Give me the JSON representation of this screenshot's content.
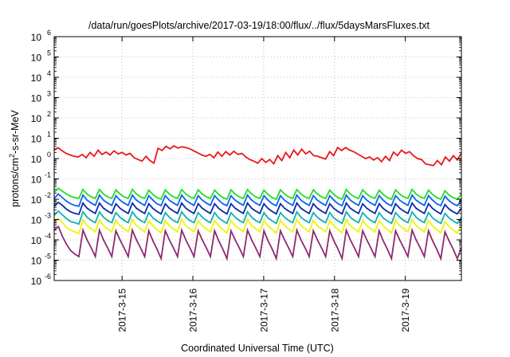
{
  "chart_data": {
    "type": "line",
    "title": "/data/run/goesPlots/archive/2017-03-19/18:00/flux/../flux/5daysMarsFluxes.txt",
    "xlabel": "Coordinated Universal Time (UTC)",
    "ylabel": {
      "base": "protons/cm",
      "sup": "2",
      "rest": "-s-sr-MeV"
    },
    "y_scale": "log",
    "ylim": [
      1e-06,
      1000000.0
    ],
    "y_ticks": [
      {
        "exp": "-6"
      },
      {
        "exp": "-5"
      },
      {
        "exp": "-4"
      },
      {
        "exp": "-3"
      },
      {
        "exp": "-2"
      },
      {
        "exp": "-1"
      },
      {
        "exp": "0"
      },
      {
        "exp": "1"
      },
      {
        "exp": "2"
      },
      {
        "exp": "3"
      },
      {
        "exp": "4"
      },
      {
        "exp": "5"
      },
      {
        "exp": "6"
      }
    ],
    "y_tick_base": "10",
    "xlim": [
      "2017-03-14 01:00",
      "2017-03-19 19:00"
    ],
    "x_ticks": [
      "2017-3-15",
      "2017-3-16",
      "2017-3-17",
      "2017-3-18",
      "2017-3-19"
    ],
    "x_tick_dates": [
      "2017-03-15",
      "2017-03-16",
      "2017-03-17",
      "2017-03-18",
      "2017-03-19"
    ],
    "grid": true,
    "series": [
      {
        "color": "#e8191d",
        "values": [
          2.6,
          3.4,
          2.4,
          1.8,
          1.5,
          1.3,
          1.2,
          1.6,
          1.1,
          2.0,
          1.3,
          2.6,
          1.6,
          2.1,
          1.5,
          2.4,
          1.7,
          2.0,
          1.5,
          1.8,
          1.1,
          0.9,
          0.75,
          1.3,
          0.8,
          0.6,
          3.2,
          2.5,
          4.0,
          3.0,
          4.2,
          3.3,
          3.8,
          3.5,
          3.0,
          2.4,
          1.9,
          1.5,
          1.3,
          1.6,
          1.1,
          2.1,
          1.3,
          2.2,
          1.5,
          2.3,
          1.6,
          1.8,
          1.2,
          0.9,
          0.75,
          0.6,
          1.0,
          0.65,
          0.9,
          0.55,
          1.4,
          0.8,
          2.0,
          1.1,
          2.6,
          1.5,
          2.9,
          1.7,
          2.3,
          1.4,
          1.3,
          1.1,
          0.95,
          2.2,
          1.4,
          3.5,
          2.5,
          3.5,
          2.6,
          2.2,
          1.7,
          1.3,
          1.0,
          1.2,
          0.85,
          1.1,
          0.7,
          1.3,
          0.8,
          2.1,
          1.4,
          2.6,
          1.8,
          2.2,
          1.4,
          1.0,
          0.9,
          0.55,
          0.5,
          0.45,
          0.8,
          0.5,
          1.2,
          0.75,
          1.4,
          0.85,
          1.9
        ]
      },
      {
        "color": "#22dd22",
        "values": [
          0.022,
          0.034,
          0.025,
          0.018,
          0.014,
          0.012,
          0.011,
          0.03,
          0.018,
          0.013,
          0.011,
          0.03,
          0.018,
          0.013,
          0.011,
          0.029,
          0.018,
          0.013,
          0.011,
          0.03,
          0.018,
          0.013,
          0.011,
          0.028,
          0.017,
          0.012,
          0.01,
          0.029,
          0.018,
          0.013,
          0.011,
          0.03,
          0.018,
          0.013,
          0.011,
          0.029,
          0.018,
          0.013,
          0.011,
          0.028,
          0.017,
          0.012,
          0.01,
          0.029,
          0.018,
          0.013,
          0.011,
          0.03,
          0.018,
          0.013,
          0.011,
          0.028,
          0.017,
          0.012,
          0.01,
          0.029,
          0.018,
          0.013,
          0.011,
          0.03,
          0.018,
          0.013,
          0.011,
          0.029,
          0.018,
          0.013,
          0.011,
          0.028,
          0.017,
          0.012,
          0.01,
          0.03,
          0.018,
          0.013,
          0.011,
          0.029,
          0.018,
          0.013,
          0.011,
          0.028,
          0.017,
          0.012,
          0.01,
          0.029,
          0.018,
          0.013,
          0.011,
          0.03,
          0.018,
          0.013,
          0.011,
          0.028,
          0.017,
          0.012,
          0.01,
          0.026,
          0.016,
          0.012,
          0.01,
          0.018
        ]
      },
      {
        "color": "#0a64f0",
        "values": [
          0.011,
          0.018,
          0.012,
          0.008,
          0.006,
          0.005,
          0.0045,
          0.016,
          0.009,
          0.0065,
          0.005,
          0.016,
          0.009,
          0.0065,
          0.005,
          0.015,
          0.009,
          0.0065,
          0.005,
          0.016,
          0.009,
          0.0065,
          0.005,
          0.015,
          0.009,
          0.006,
          0.0048,
          0.015,
          0.009,
          0.0065,
          0.005,
          0.016,
          0.009,
          0.0065,
          0.005,
          0.015,
          0.009,
          0.0065,
          0.005,
          0.015,
          0.009,
          0.006,
          0.0048,
          0.015,
          0.009,
          0.0065,
          0.005,
          0.016,
          0.009,
          0.0065,
          0.005,
          0.015,
          0.009,
          0.006,
          0.0048,
          0.015,
          0.009,
          0.0065,
          0.005,
          0.016,
          0.009,
          0.0065,
          0.005,
          0.015,
          0.009,
          0.0065,
          0.005,
          0.015,
          0.009,
          0.006,
          0.0048,
          0.016,
          0.009,
          0.0065,
          0.005,
          0.015,
          0.009,
          0.0065,
          0.005,
          0.015,
          0.009,
          0.006,
          0.0048,
          0.015,
          0.009,
          0.0065,
          0.005,
          0.016,
          0.009,
          0.0065,
          0.005,
          0.015,
          0.009,
          0.006,
          0.0048,
          0.014,
          0.0085,
          0.006,
          0.0048,
          0.009
        ]
      },
      {
        "color": "#0a2aa8",
        "values": [
          0.0045,
          0.007,
          0.005,
          0.0032,
          0.0024,
          0.002,
          0.0018,
          0.0065,
          0.0036,
          0.0026,
          0.002,
          0.0065,
          0.0036,
          0.0026,
          0.002,
          0.006,
          0.0036,
          0.0026,
          0.002,
          0.0065,
          0.0036,
          0.0026,
          0.002,
          0.006,
          0.0035,
          0.0025,
          0.0019,
          0.006,
          0.0036,
          0.0026,
          0.002,
          0.0065,
          0.0036,
          0.0026,
          0.002,
          0.006,
          0.0036,
          0.0026,
          0.002,
          0.006,
          0.0035,
          0.0025,
          0.0019,
          0.006,
          0.0036,
          0.0026,
          0.002,
          0.0065,
          0.0036,
          0.0026,
          0.002,
          0.006,
          0.0035,
          0.0025,
          0.0019,
          0.006,
          0.0036,
          0.0026,
          0.002,
          0.0065,
          0.0036,
          0.0026,
          0.002,
          0.006,
          0.0036,
          0.0026,
          0.002,
          0.006,
          0.0035,
          0.0025,
          0.0019,
          0.0065,
          0.0036,
          0.0026,
          0.002,
          0.006,
          0.0036,
          0.0026,
          0.002,
          0.006,
          0.0035,
          0.0025,
          0.0019,
          0.006,
          0.0036,
          0.0026,
          0.002,
          0.0065,
          0.0036,
          0.0026,
          0.002,
          0.006,
          0.0035,
          0.0025,
          0.0019,
          0.0055,
          0.0033,
          0.0024,
          0.0019,
          0.0036
        ]
      },
      {
        "color": "#10b0b8",
        "values": [
          0.0016,
          0.0026,
          0.0017,
          0.0011,
          0.0008,
          0.0007,
          0.0006,
          0.0024,
          0.0013,
          0.0009,
          0.0007,
          0.0024,
          0.0013,
          0.0009,
          0.0007,
          0.0022,
          0.0013,
          0.0009,
          0.0007,
          0.0024,
          0.0013,
          0.0009,
          0.0007,
          0.0022,
          0.0012,
          0.00085,
          0.00065,
          0.0022,
          0.0013,
          0.0009,
          0.0007,
          0.0024,
          0.0013,
          0.0009,
          0.0007,
          0.0022,
          0.0013,
          0.0009,
          0.0007,
          0.0022,
          0.0012,
          0.00085,
          0.00065,
          0.0022,
          0.0013,
          0.0009,
          0.0007,
          0.0024,
          0.0013,
          0.0009,
          0.0007,
          0.0022,
          0.0012,
          0.00085,
          0.00065,
          0.0022,
          0.0013,
          0.0009,
          0.0007,
          0.0024,
          0.0013,
          0.0009,
          0.0007,
          0.0022,
          0.0013,
          0.0009,
          0.0007,
          0.0022,
          0.0012,
          0.00085,
          0.00065,
          0.0024,
          0.0013,
          0.0009,
          0.0007,
          0.0022,
          0.0013,
          0.0009,
          0.0007,
          0.0022,
          0.0012,
          0.00085,
          0.00065,
          0.0022,
          0.0013,
          0.0009,
          0.0007,
          0.0024,
          0.0013,
          0.0009,
          0.0007,
          0.0022,
          0.0012,
          0.00085,
          0.00065,
          0.002,
          0.0012,
          0.00085,
          0.00065,
          0.0013
        ]
      },
      {
        "color": "#f2f20a",
        "values": [
          0.0008,
          0.0011,
          0.0007,
          0.0004,
          0.0003,
          0.00025,
          0.0002,
          0.001,
          0.0005,
          0.00035,
          0.00025,
          0.001,
          0.0005,
          0.00035,
          0.00025,
          0.0009,
          0.0005,
          0.00035,
          0.00025,
          0.001,
          0.0005,
          0.00035,
          0.00025,
          0.0009,
          0.00048,
          0.00032,
          0.00022,
          0.0009,
          0.0005,
          0.00035,
          0.00025,
          0.001,
          0.0005,
          0.00035,
          0.00025,
          0.0009,
          0.0005,
          0.00035,
          0.00025,
          0.0009,
          0.00048,
          0.00032,
          0.00022,
          0.0009,
          0.0005,
          0.00035,
          0.00025,
          0.001,
          0.0005,
          0.00035,
          0.00025,
          0.0009,
          0.00048,
          0.00032,
          0.00022,
          0.0009,
          0.0005,
          0.00035,
          0.00025,
          0.001,
          0.0005,
          0.00035,
          0.00025,
          0.0009,
          0.0005,
          0.00035,
          0.00025,
          0.0009,
          0.00048,
          0.00032,
          0.00022,
          0.001,
          0.0005,
          0.00035,
          0.00025,
          0.0009,
          0.0005,
          0.00035,
          0.00025,
          0.0009,
          0.00048,
          0.00032,
          0.00022,
          0.0009,
          0.0005,
          0.00035,
          0.00025,
          0.001,
          0.0005,
          0.00035,
          0.00025,
          0.0009,
          0.00048,
          0.00032,
          0.00022,
          0.0008,
          0.00045,
          0.0003,
          0.00022,
          0.0005
        ]
      },
      {
        "color": "#8c2a70",
        "values": [
          0.0003,
          0.00045,
          0.00015,
          6e-05,
          3e-05,
          2e-05,
          1.5e-05,
          0.0003,
          0.0001,
          4e-05,
          1.5e-05,
          0.0003,
          0.0001,
          4e-05,
          1.5e-05,
          0.00028,
          0.0001,
          4e-05,
          1.5e-05,
          0.0003,
          0.0001,
          4e-05,
          1.5e-05,
          0.00028,
          9e-05,
          3.5e-05,
          1.2e-05,
          0.00028,
          0.0001,
          4e-05,
          1.5e-05,
          0.0003,
          0.0001,
          4e-05,
          1.5e-05,
          0.00028,
          0.0001,
          4e-05,
          1.5e-05,
          0.00028,
          9e-05,
          3.5e-05,
          1.2e-05,
          0.00028,
          0.0001,
          4e-05,
          1.5e-05,
          0.0003,
          0.0001,
          4e-05,
          1.5e-05,
          0.00028,
          9e-05,
          3.5e-05,
          1.2e-05,
          0.00028,
          0.0001,
          4e-05,
          1.5e-05,
          0.0003,
          0.0001,
          4e-05,
          1.5e-05,
          0.00028,
          0.0001,
          4e-05,
          1.5e-05,
          0.00028,
          9e-05,
          3.5e-05,
          1.2e-05,
          0.0003,
          0.0001,
          4e-05,
          1.5e-05,
          0.00028,
          0.0001,
          4e-05,
          1.5e-05,
          0.00028,
          9e-05,
          3.5e-05,
          1.2e-05,
          0.00028,
          0.0001,
          4e-05,
          1.5e-05,
          0.0003,
          0.0001,
          4e-05,
          1.5e-05,
          0.00028,
          9e-05,
          3.5e-05,
          1.2e-05,
          0.00025,
          9e-05,
          3.5e-05,
          1.2e-05,
          4e-05
        ]
      }
    ]
  }
}
